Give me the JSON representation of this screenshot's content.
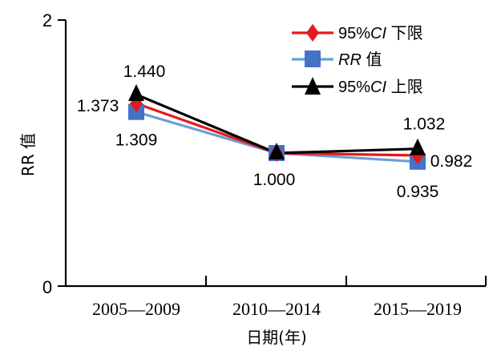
{
  "chart_data": {
    "type": "line",
    "title": "",
    "xlabel": "日期(年)",
    "ylabel": "RR 值",
    "ylim": [
      0,
      2
    ],
    "yticks": [
      "0",
      "2"
    ],
    "grid": false,
    "legend_position": "top-right",
    "categories": [
      "2005—2009",
      "2010—2014",
      "2015—2019"
    ],
    "series": [
      {
        "name": "95%CI 下限",
        "legend_prefix": "95%",
        "legend_italic": "CI",
        "legend_suffix": " 下限",
        "values": [
          1.373,
          1.0,
          0.982
        ],
        "labels": [
          "1.373",
          "",
          "0.982"
        ],
        "color": "#e41a1c",
        "marker": "diamond"
      },
      {
        "name": "RR 值",
        "legend_prefix": "",
        "legend_italic": "RR",
        "legend_suffix": " 值",
        "values": [
          1.309,
          1.0,
          0.935
        ],
        "labels": [
          "1.309",
          "1.000",
          "0.935"
        ],
        "color": "#6a9fd4",
        "marker_color": "#4472c4",
        "marker": "square"
      },
      {
        "name": "95%CI 上限",
        "legend_prefix": "95%",
        "legend_italic": "CI",
        "legend_suffix": " 上限",
        "values": [
          1.44,
          1.0,
          1.032
        ],
        "labels": [
          "1.440",
          "",
          "1.032"
        ],
        "color": "#000000",
        "marker": "triangle"
      }
    ]
  }
}
